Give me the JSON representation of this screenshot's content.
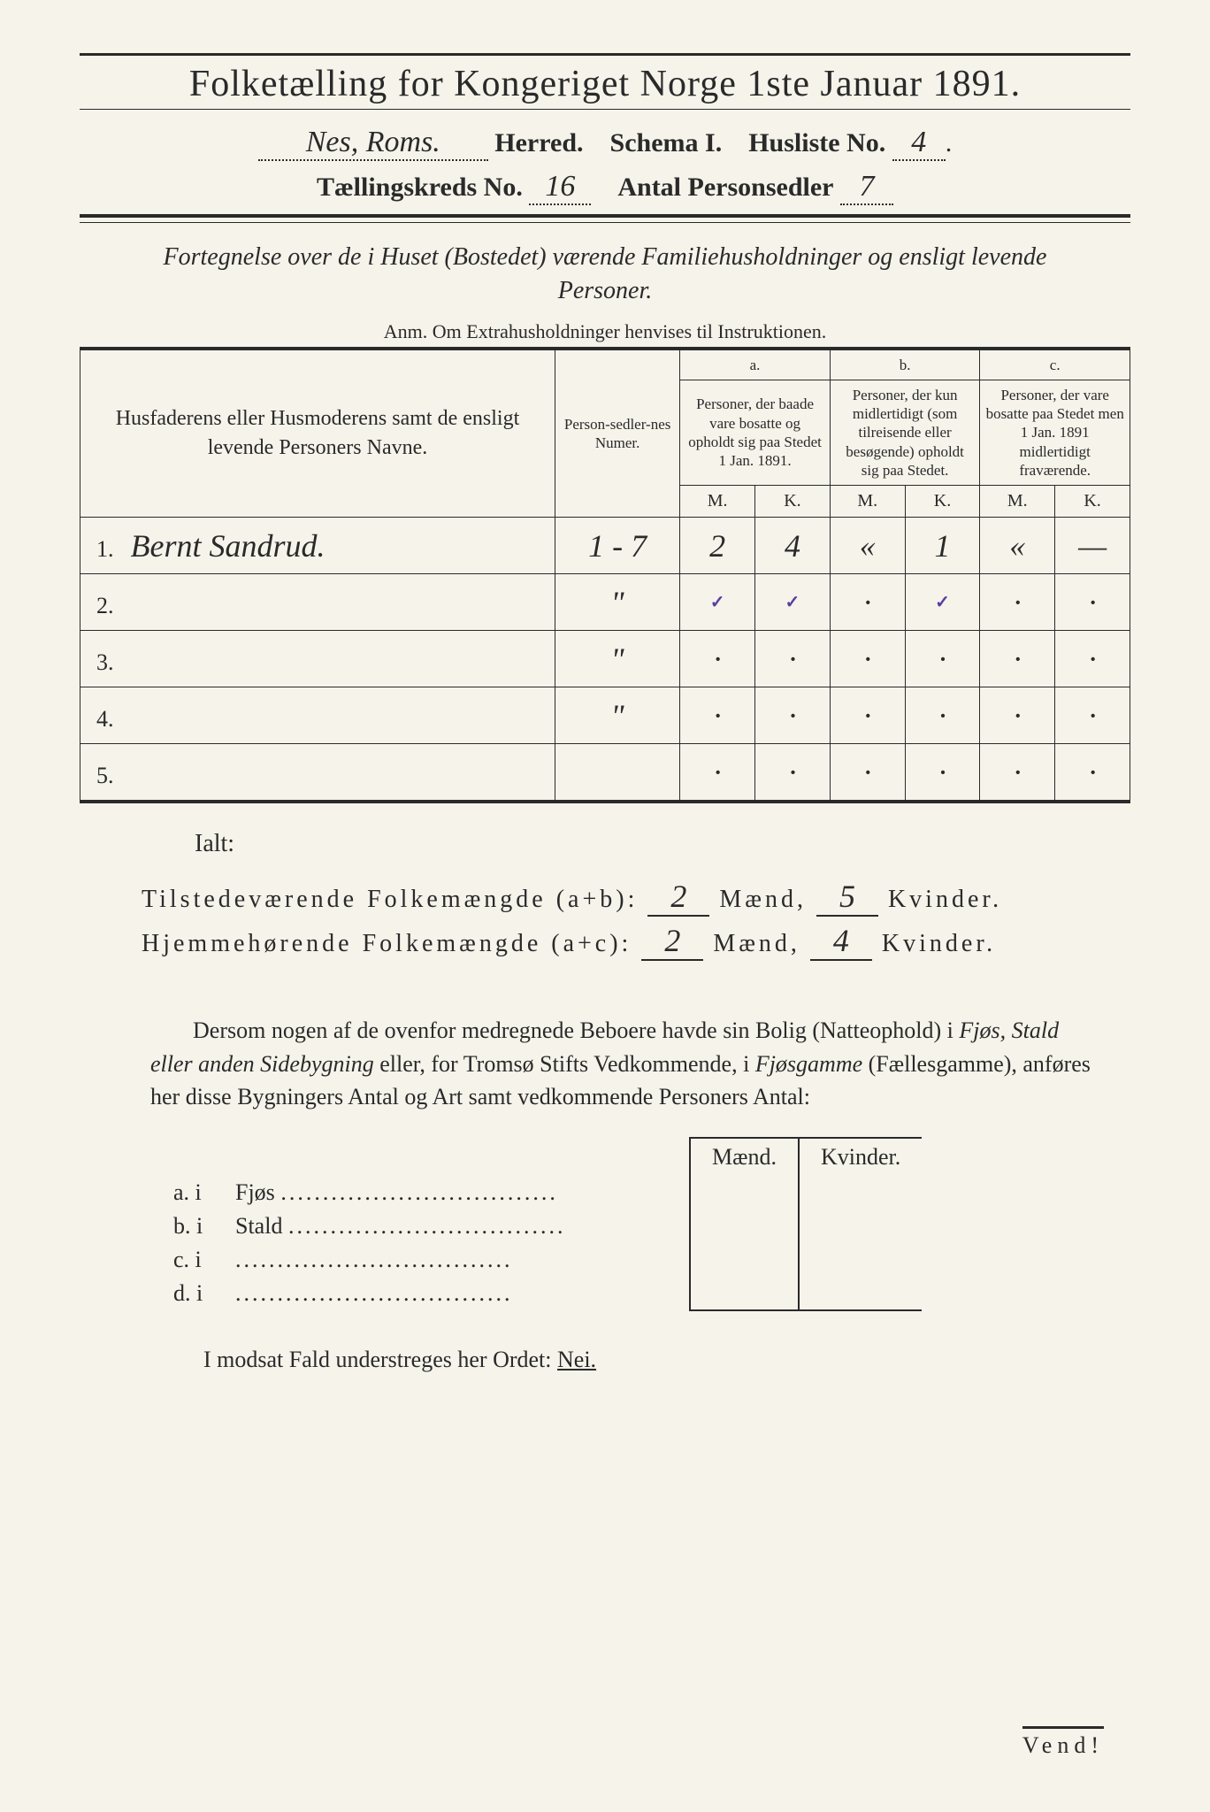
{
  "header": {
    "title": "Folketælling for Kongeriget Norge 1ste Januar 1891.",
    "herred_hand": "Nes, Roms.",
    "herred_label": "Herred.",
    "schema": "Schema I.",
    "husliste_label": "Husliste No.",
    "husliste_no": "4",
    "kreds_label": "Tællingskreds No.",
    "kreds_no": "16",
    "antal_label": "Antal Personsedler",
    "antal_val": "7"
  },
  "subtitle": "Fortegnelse over de i Huset (Bostedet) værende Familiehusholdninger og ensligt levende Personer.",
  "anm": "Anm.  Om Extrahusholdninger henvises til Instruktionen.",
  "columns": {
    "names": "Husfaderens eller Husmoderens samt de ensligt levende Personers Navne.",
    "numer": "Person-sedler-nes Numer.",
    "a_label": "a.",
    "a_text": "Personer, der baade vare bosatte og opholdt sig paa Stedet 1 Jan. 1891.",
    "b_label": "b.",
    "b_text": "Personer, der kun midlertidigt (som tilreisende eller besøgende) opholdt sig paa Stedet.",
    "c_label": "c.",
    "c_text": "Personer, der vare bosatte paa Stedet men 1 Jan. 1891 midlertidigt fraværende.",
    "M": "M.",
    "K": "K."
  },
  "rows": [
    {
      "n": "1.",
      "name": "Bernt Sandrud.",
      "numer": "1 - 7",
      "aM": "2",
      "aK": "4",
      "bM": "«",
      "bK": "1",
      "cM": "«",
      "cK": "—"
    },
    {
      "n": "2.",
      "name": "",
      "numer": "\"",
      "aM": "✓",
      "aK": "✓",
      "bM": "·",
      "bK": "✓",
      "cM": "·",
      "cK": "·"
    },
    {
      "n": "3.",
      "name": "",
      "numer": "\"",
      "aM": "·",
      "aK": "·",
      "bM": "·",
      "bK": "·",
      "cM": "·",
      "cK": "·"
    },
    {
      "n": "4.",
      "name": "",
      "numer": "\"",
      "aM": "·",
      "aK": "·",
      "bM": "·",
      "bK": "·",
      "cM": "·",
      "cK": "·"
    },
    {
      "n": "5.",
      "name": "",
      "numer": "",
      "aM": "·",
      "aK": "·",
      "bM": "·",
      "bK": "·",
      "cM": "·",
      "cK": "·"
    }
  ],
  "totals": {
    "ialt": "Ialt:",
    "line1_label": "Tilstedeværende Folkemængde (a+b):",
    "line1_m": "2",
    "line1_k": "5",
    "line2_label": "Hjemmehørende Folkemængde (a+c):",
    "line2_m": "2",
    "line2_k": "4",
    "maend": "Mænd,",
    "kvinder": "Kvinder."
  },
  "para": "Dersom nogen af de ovenfor medregnede Beboere havde sin Bolig (Natteophold) i Fjøs, Stald eller anden Sidebygning eller, for Tromsø Stifts Vedkommende, i Fjøsgamme (Fællesgamme), anføres her disse Bygningers Antal og Art samt vedkommende Personers Antal:",
  "bygn": {
    "maend": "Mænd.",
    "kvinder": "Kvinder.",
    "rows": [
      {
        "lbl": "a. i",
        "txt": "Fjøs"
      },
      {
        "lbl": "b. i",
        "txt": "Stald"
      },
      {
        "lbl": "c. i",
        "txt": ""
      },
      {
        "lbl": "d. i",
        "txt": ""
      }
    ],
    "dots": "................................."
  },
  "modsat": {
    "text": "I modsat Fald understreges her Ordet:",
    "nei": "Nei."
  },
  "vend": "Vend!"
}
